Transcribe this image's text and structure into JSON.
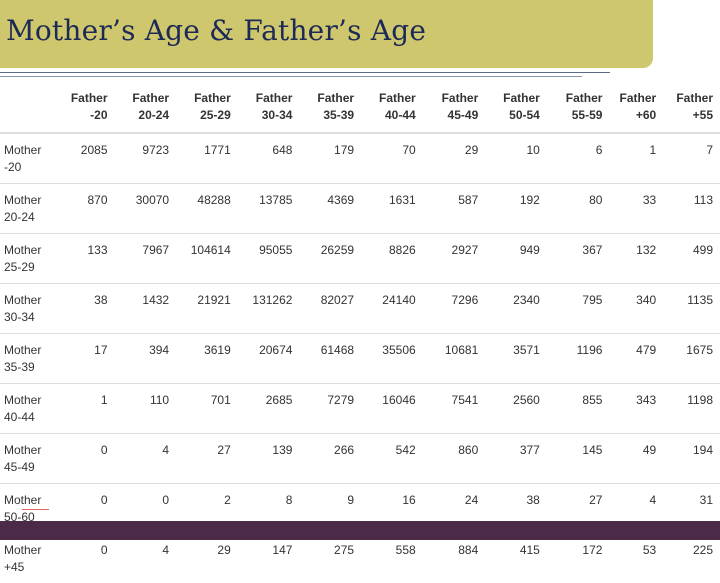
{
  "title": "Mother’s Age & Father’s Age",
  "columns": [
    {
      "line1": "Father",
      "line2": "-20"
    },
    {
      "line1": "Father",
      "line2": "20-24"
    },
    {
      "line1": "Father",
      "line2": "25-29"
    },
    {
      "line1": "Father",
      "line2": "30-34"
    },
    {
      "line1": "Father",
      "line2": "35-39"
    },
    {
      "line1": "Father",
      "line2": "40-44"
    },
    {
      "line1": "Father",
      "line2": "45-49"
    },
    {
      "line1": "Father",
      "line2": "50-54"
    },
    {
      "line1": "Father",
      "line2": "55-59"
    },
    {
      "line1": "Father",
      "line2": "+60"
    },
    {
      "line1": "Father",
      "line2": "+55"
    }
  ],
  "rows": [
    {
      "line1": "Mother",
      "line2": "-20",
      "values": [
        "2085",
        "9723",
        "1771",
        "648",
        "179",
        "70",
        "29",
        "10",
        "6",
        "1",
        "7"
      ]
    },
    {
      "line1": "Mother",
      "line2": "20-24",
      "values": [
        "870",
        "30070",
        "48288",
        "13785",
        "4369",
        "1631",
        "587",
        "192",
        "80",
        "33",
        "113"
      ]
    },
    {
      "line1": "Mother",
      "line2": "25-29",
      "values": [
        "133",
        "7967",
        "104614",
        "95055",
        "26259",
        "8826",
        "2927",
        "949",
        "367",
        "132",
        "499"
      ]
    },
    {
      "line1": "Mother",
      "line2": "30-34",
      "values": [
        "38",
        "1432",
        "21921",
        "131262",
        "82027",
        "24140",
        "7296",
        "2340",
        "795",
        "340",
        "1135"
      ]
    },
    {
      "line1": "Mother",
      "line2": "35-39",
      "values": [
        "17",
        "394",
        "3619",
        "20674",
        "61468",
        "35506",
        "10681",
        "3571",
        "1196",
        "479",
        "1675"
      ]
    },
    {
      "line1": "Mother",
      "line2": "40-44",
      "values": [
        "1",
        "110",
        "701",
        "2685",
        "7279",
        "16046",
        "7541",
        "2560",
        "855",
        "343",
        "1198"
      ]
    },
    {
      "line1": "Mother",
      "line2": "45-49",
      "values": [
        "0",
        "4",
        "27",
        "139",
        "266",
        "542",
        "860",
        "377",
        "145",
        "49",
        "194"
      ]
    },
    {
      "line1": "Mother",
      "line2": "50-60",
      "values": [
        "0",
        "0",
        "2",
        "8",
        "9",
        "16",
        "24",
        "38",
        "27",
        "4",
        "31"
      ]
    },
    {
      "line1": "Mother",
      "line2": "+45",
      "values": [
        "0",
        "4",
        "29",
        "147",
        "275",
        "558",
        "884",
        "415",
        "172",
        "53",
        "225"
      ]
    }
  ]
}
